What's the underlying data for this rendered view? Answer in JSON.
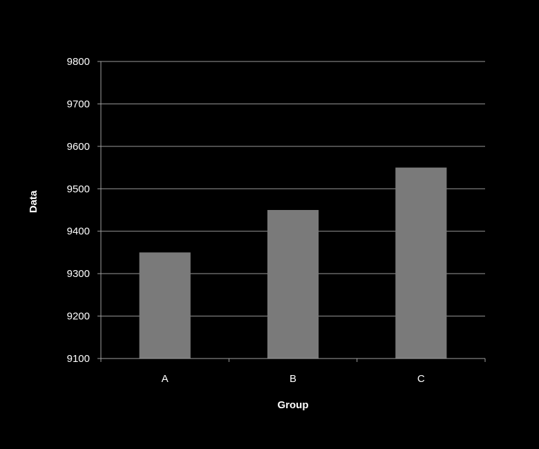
{
  "chart_data": {
    "type": "bar",
    "title": "",
    "xlabel": "Group",
    "ylabel": "Data",
    "categories": [
      "A",
      "B",
      "C"
    ],
    "values": [
      9350,
      9450,
      9550
    ],
    "ylim": [
      9100,
      9800
    ],
    "yticks": [
      9100,
      9200,
      9300,
      9400,
      9500,
      9600,
      9700,
      9800
    ],
    "ytick_labels": [
      "9100",
      "9200",
      "9300",
      "9400",
      "9500",
      "9600",
      "9700",
      "9800"
    ],
    "grid": true,
    "legend": "none",
    "colors": {
      "background": "#000000",
      "bar": "#7a7a7a",
      "grid": "#9a9a9a",
      "axis": "#a0a0a0",
      "text": "#ffffff"
    }
  }
}
